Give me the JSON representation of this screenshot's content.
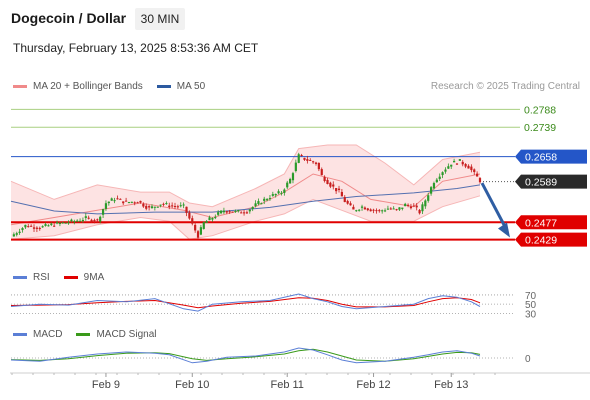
{
  "header": {
    "title": "Dogecoin / Dollar",
    "timeframe": "30 MIN",
    "timestamp": "Thursday, February 13, 2025 8:53:36 AM CET"
  },
  "legend_main": [
    {
      "label": "MA 20 + Bollinger Bands",
      "color": "#f08a8a"
    },
    {
      "label": "MA 50",
      "color": "#2c5aa0"
    }
  ],
  "credit": "Research © 2025 Trading Central",
  "legend_rsi": [
    {
      "label": "RSI",
      "color": "#5b7fd6"
    },
    {
      "label": "9MA",
      "color": "#e00000"
    }
  ],
  "legend_macd": [
    {
      "label": "MACD",
      "color": "#5b7fd6"
    },
    {
      "label": "MACD Signal",
      "color": "#3a9a1a"
    }
  ],
  "colors": {
    "up": "#2a9a2a",
    "down": "#c81e1e",
    "resistance_line": "#a8cf80",
    "pivot_line": "#2456c8",
    "support_line": "#e00000",
    "arrow": "#2f5ea3",
    "bollinger_fill": "#fde0e0"
  },
  "chart_data": [
    {
      "type": "candlestick",
      "title": "Dogecoin / Dollar",
      "timeframe": "30 MIN",
      "x_ticks": [
        "Feb 9",
        "Feb 10",
        "Feb 11",
        "Feb 12",
        "Feb 13"
      ],
      "ylim": [
        0.2395,
        0.2825
      ],
      "last_price": {
        "label": "0.2589",
        "value": 0.2589
      },
      "levels": [
        {
          "label": "0.2788",
          "value": 0.2788,
          "kind": "resistance"
        },
        {
          "label": "0.2739",
          "value": 0.2739,
          "kind": "resistance"
        },
        {
          "label": "0.2658",
          "value": 0.2658,
          "kind": "pivot"
        },
        {
          "label": "0.2477",
          "value": 0.2477,
          "kind": "support"
        },
        {
          "label": "0.2429",
          "value": 0.2429,
          "kind": "support"
        }
      ],
      "forecast": {
        "from": 0.2585,
        "to": 0.2435,
        "direction": "down"
      },
      "price_path": [
        [
          0,
          0.2438
        ],
        [
          5,
          0.2468
        ],
        [
          10,
          0.2462
        ],
        [
          14,
          0.247
        ],
        [
          18,
          0.2475
        ],
        [
          22,
          0.248
        ],
        [
          26,
          0.2488
        ],
        [
          30,
          0.2482
        ],
        [
          33,
          0.253
        ],
        [
          36,
          0.2542
        ],
        [
          40,
          0.2532
        ],
        [
          44,
          0.2535
        ],
        [
          48,
          0.2515
        ],
        [
          52,
          0.2528
        ],
        [
          56,
          0.2522
        ],
        [
          60,
          0.252
        ],
        [
          63,
          0.247
        ],
        [
          65,
          0.244
        ],
        [
          67,
          0.2475
        ],
        [
          70,
          0.249
        ],
        [
          74,
          0.251
        ],
        [
          78,
          0.2505
        ],
        [
          82,
          0.2508
        ],
        [
          86,
          0.253
        ],
        [
          90,
          0.2548
        ],
        [
          94,
          0.256
        ],
        [
          97,
          0.2595
        ],
        [
          100,
          0.266
        ],
        [
          103,
          0.2648
        ],
        [
          106,
          0.264
        ],
        [
          108,
          0.2605
        ],
        [
          111,
          0.258
        ],
        [
          114,
          0.256
        ],
        [
          116,
          0.2535
        ],
        [
          119,
          0.251
        ],
        [
          122,
          0.252
        ],
        [
          125,
          0.2512
        ],
        [
          128,
          0.2508
        ],
        [
          131,
          0.2515
        ],
        [
          134,
          0.251
        ],
        [
          137,
          0.2525
        ],
        [
          140,
          0.252
        ],
        [
          142,
          0.2505
        ],
        [
          144,
          0.2538
        ],
        [
          147,
          0.259
        ],
        [
          150,
          0.2618
        ],
        [
          153,
          0.264
        ],
        [
          156,
          0.2645
        ],
        [
          159,
          0.263
        ],
        [
          161,
          0.261
        ],
        [
          163,
          0.2592
        ]
      ],
      "ma50_path": [
        [
          0,
          0.2535
        ],
        [
          15,
          0.2508
        ],
        [
          30,
          0.25
        ],
        [
          50,
          0.2505
        ],
        [
          70,
          0.2505
        ],
        [
          90,
          0.2518
        ],
        [
          105,
          0.2535
        ],
        [
          120,
          0.2548
        ],
        [
          140,
          0.2558
        ],
        [
          155,
          0.257
        ],
        [
          163,
          0.258
        ]
      ],
      "bb_upper": [
        [
          0,
          0.259
        ],
        [
          15,
          0.254
        ],
        [
          30,
          0.258
        ],
        [
          45,
          0.256
        ],
        [
          55,
          0.256
        ],
        [
          62,
          0.253
        ],
        [
          70,
          0.252
        ],
        [
          85,
          0.257
        ],
        [
          95,
          0.261
        ],
        [
          100,
          0.268
        ],
        [
          110,
          0.269
        ],
        [
          120,
          0.269
        ],
        [
          130,
          0.264
        ],
        [
          140,
          0.258
        ],
        [
          150,
          0.265
        ],
        [
          163,
          0.267
        ]
      ],
      "bb_lower": [
        [
          0,
          0.243
        ],
        [
          15,
          0.244
        ],
        [
          30,
          0.247
        ],
        [
          45,
          0.249
        ],
        [
          55,
          0.248
        ],
        [
          62,
          0.243
        ],
        [
          70,
          0.244
        ],
        [
          85,
          0.248
        ],
        [
          95,
          0.25
        ],
        [
          105,
          0.254
        ],
        [
          115,
          0.251
        ],
        [
          125,
          0.248
        ],
        [
          140,
          0.248
        ],
        [
          150,
          0.252
        ],
        [
          163,
          0.255
        ]
      ],
      "ma20_path": [
        [
          0,
          0.247
        ],
        [
          15,
          0.249
        ],
        [
          30,
          0.251
        ],
        [
          45,
          0.253
        ],
        [
          60,
          0.251
        ],
        [
          70,
          0.249
        ],
        [
          85,
          0.252
        ],
        [
          95,
          0.256
        ],
        [
          105,
          0.261
        ],
        [
          115,
          0.259
        ],
        [
          125,
          0.254
        ],
        [
          140,
          0.252
        ],
        [
          150,
          0.259
        ],
        [
          163,
          0.261
        ]
      ]
    },
    {
      "type": "line",
      "name_label": "RSI",
      "levels": [
        {
          "label": "70",
          "value": 70
        },
        {
          "label": "50",
          "value": 50
        },
        {
          "label": "30",
          "value": 30
        }
      ],
      "ylim": [
        20,
        85
      ],
      "rsi": [
        [
          0,
          45
        ],
        [
          10,
          50
        ],
        [
          20,
          48
        ],
        [
          30,
          58
        ],
        [
          40,
          55
        ],
        [
          50,
          62
        ],
        [
          60,
          40
        ],
        [
          65,
          35
        ],
        [
          70,
          50
        ],
        [
          80,
          55
        ],
        [
          90,
          58
        ],
        [
          100,
          72
        ],
        [
          105,
          62
        ],
        [
          110,
          55
        ],
        [
          115,
          45
        ],
        [
          120,
          40
        ],
        [
          130,
          45
        ],
        [
          140,
          50
        ],
        [
          145,
          62
        ],
        [
          150,
          68
        ],
        [
          155,
          65
        ],
        [
          160,
          55
        ],
        [
          163,
          45
        ]
      ],
      "ma9": [
        [
          0,
          47
        ],
        [
          10,
          48
        ],
        [
          20,
          49
        ],
        [
          30,
          53
        ],
        [
          40,
          56
        ],
        [
          50,
          58
        ],
        [
          60,
          48
        ],
        [
          65,
          42
        ],
        [
          70,
          46
        ],
        [
          80,
          52
        ],
        [
          90,
          56
        ],
        [
          100,
          64
        ],
        [
          105,
          63
        ],
        [
          110,
          58
        ],
        [
          115,
          50
        ],
        [
          120,
          44
        ],
        [
          130,
          44
        ],
        [
          140,
          47
        ],
        [
          145,
          55
        ],
        [
          150,
          62
        ],
        [
          155,
          64
        ],
        [
          160,
          60
        ],
        [
          163,
          53
        ]
      ]
    },
    {
      "type": "line",
      "name_label": "MACD",
      "levels": [
        {
          "label": "0",
          "value": 0
        }
      ],
      "ylim": [
        -0.0035,
        0.0045
      ],
      "macd": [
        [
          0,
          -0.0005
        ],
        [
          10,
          -0.0008
        ],
        [
          20,
          0.0002
        ],
        [
          30,
          0.001
        ],
        [
          40,
          0.0015
        ],
        [
          50,
          0.0012
        ],
        [
          55,
          0.0008
        ],
        [
          63,
          -0.0012
        ],
        [
          68,
          -0.0008
        ],
        [
          75,
          0.0002
        ],
        [
          85,
          0.0005
        ],
        [
          95,
          0.0015
        ],
        [
          100,
          0.0025
        ],
        [
          105,
          0.002
        ],
        [
          110,
          0.0008
        ],
        [
          115,
          -0.0005
        ],
        [
          120,
          -0.0012
        ],
        [
          130,
          -0.0008
        ],
        [
          140,
          0.0002
        ],
        [
          145,
          0.0008
        ],
        [
          150,
          0.0015
        ],
        [
          155,
          0.0018
        ],
        [
          160,
          0.0012
        ],
        [
          163,
          0.0005
        ]
      ],
      "signal": [
        [
          0,
          -0.0004
        ],
        [
          10,
          -0.0006
        ],
        [
          20,
          -0.0002
        ],
        [
          30,
          0.0006
        ],
        [
          40,
          0.0012
        ],
        [
          50,
          0.0013
        ],
        [
          55,
          0.0011
        ],
        [
          63,
          -0.0002
        ],
        [
          68,
          -0.0006
        ],
        [
          75,
          -0.0002
        ],
        [
          85,
          0.0003
        ],
        [
          95,
          0.001
        ],
        [
          100,
          0.0018
        ],
        [
          105,
          0.0022
        ],
        [
          110,
          0.0015
        ],
        [
          115,
          0.0005
        ],
        [
          120,
          -0.0005
        ],
        [
          130,
          -0.0008
        ],
        [
          140,
          -0.0002
        ],
        [
          145,
          0.0004
        ],
        [
          150,
          0.001
        ],
        [
          155,
          0.0014
        ],
        [
          160,
          0.0013
        ],
        [
          163,
          0.0009
        ]
      ]
    }
  ]
}
